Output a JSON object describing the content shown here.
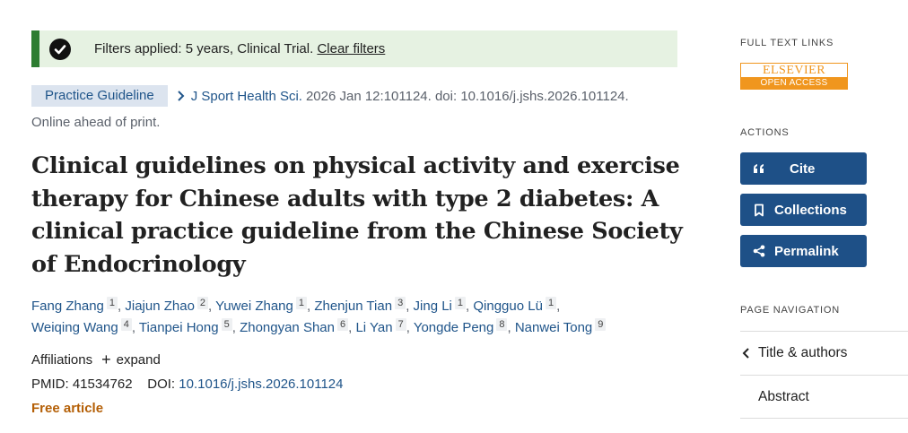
{
  "filter_banner": {
    "message": "Filters applied: 5 years, Clinical Trial. ",
    "clear_label": "Clear filters"
  },
  "citation": {
    "badge": "Practice Guideline",
    "journal": "J Sport Health Sci.",
    "details": "2026 Jan 12:101124. doi: 10.1016/j.jshs.2026.101124.",
    "status": "Online ahead of print."
  },
  "title": "Clinical guidelines on physical activity and exercise therapy for Chinese adults with type 2 diabetes: A clinical practice guideline from the Chinese Society of Endocrinology",
  "authors": [
    {
      "name": "Fang Zhang",
      "aff": "1"
    },
    {
      "name": "Jiajun Zhao",
      "aff": "2"
    },
    {
      "name": "Yuwei Zhang",
      "aff": "1"
    },
    {
      "name": "Zhenjun Tian",
      "aff": "3"
    },
    {
      "name": "Jing Li",
      "aff": "1"
    },
    {
      "name": "Qingguo Lü",
      "aff": "1"
    },
    {
      "name": "Weiqing Wang",
      "aff": "4"
    },
    {
      "name": "Tianpei Hong",
      "aff": "5"
    },
    {
      "name": "Zhongyan Shan",
      "aff": "6"
    },
    {
      "name": "Li Yan",
      "aff": "7"
    },
    {
      "name": "Yongde Peng",
      "aff": "8"
    },
    {
      "name": "Nanwei Tong",
      "aff": "9"
    }
  ],
  "affiliations": {
    "label": "Affiliations",
    "expand_label": "expand"
  },
  "identifiers": {
    "pmid_label": "PMID:",
    "pmid": "41534762",
    "doi_label": "DOI:",
    "doi": "10.1016/j.jshs.2026.101124"
  },
  "free_article": "Free article",
  "sidebar": {
    "full_text_heading": "FULL TEXT LINKS",
    "elsevier": {
      "top": "ELSEVIER",
      "bottom": "OPEN ACCESS"
    },
    "actions_heading": "ACTIONS",
    "actions": {
      "cite": "Cite",
      "collections": "Collections",
      "permalink": "Permalink"
    },
    "page_nav_heading": "PAGE NAVIGATION",
    "nav": {
      "title_authors": "Title & authors",
      "abstract": "Abstract"
    }
  },
  "colors": {
    "link": "#20558a",
    "banner_bg": "#e6f2e2",
    "banner_accent": "#2e7d32",
    "free_article": "#b45f06",
    "action_button": "#1e5087",
    "elsevier_orange": "#f0961e"
  }
}
